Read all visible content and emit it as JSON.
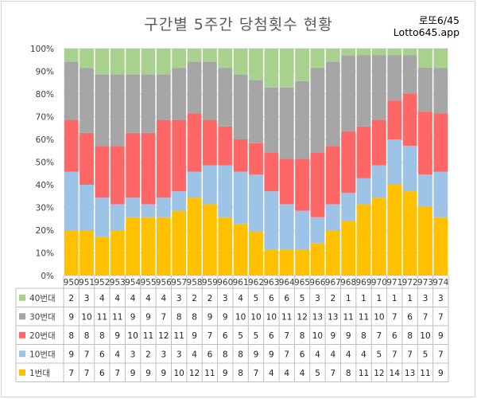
{
  "title": "구간별 5주간 당첨횟수 현황",
  "brand": {
    "line1": "로또6/45",
    "line2": "Lotto645.app"
  },
  "colors": {
    "1번대": "#ffc000",
    "10번대": "#9dc3e6",
    "20번대": "#ff6666",
    "30번대": "#a6a6a6",
    "40번대": "#a9d18e"
  },
  "chart_data": {
    "type": "bar",
    "stacked": "percent",
    "categories": [
      "950",
      "951",
      "952",
      "953",
      "954",
      "955",
      "956",
      "957",
      "958",
      "959",
      "960",
      "961",
      "962",
      "963",
      "964",
      "965",
      "966",
      "967",
      "968",
      "969",
      "970",
      "971",
      "972",
      "973",
      "974"
    ],
    "series": [
      {
        "name": "1번대",
        "values": [
          7,
          7,
          6,
          7,
          9,
          9,
          9,
          10,
          12,
          11,
          9,
          8,
          7,
          4,
          4,
          4,
          5,
          7,
          8,
          11,
          12,
          14,
          13,
          11,
          9
        ]
      },
      {
        "name": "10번대",
        "values": [
          9,
          7,
          6,
          4,
          3,
          2,
          3,
          3,
          4,
          6,
          8,
          8,
          9,
          9,
          7,
          6,
          4,
          4,
          4,
          4,
          5,
          7,
          7,
          5,
          7
        ]
      },
      {
        "name": "20번대",
        "values": [
          8,
          8,
          8,
          9,
          10,
          11,
          12,
          11,
          9,
          7,
          6,
          5,
          5,
          6,
          7,
          8,
          10,
          9,
          9,
          8,
          7,
          6,
          8,
          10,
          9
        ]
      },
      {
        "name": "30번대",
        "values": [
          9,
          10,
          11,
          11,
          9,
          9,
          7,
          8,
          8,
          9,
          9,
          10,
          10,
          10,
          11,
          12,
          13,
          13,
          11,
          11,
          10,
          7,
          6,
          7,
          7
        ]
      },
      {
        "name": "40번대",
        "values": [
          2,
          3,
          4,
          4,
          4,
          4,
          4,
          3,
          2,
          2,
          3,
          4,
          5,
          6,
          6,
          5,
          3,
          2,
          1,
          1,
          1,
          1,
          1,
          3,
          3
        ]
      }
    ],
    "yaxis_ticks": [
      "0%",
      "10%",
      "20%",
      "30%",
      "40%",
      "50%",
      "60%",
      "70%",
      "80%",
      "90%",
      "100%"
    ],
    "ylim": [
      0,
      100
    ],
    "grid": true,
    "legend": "data-table"
  }
}
